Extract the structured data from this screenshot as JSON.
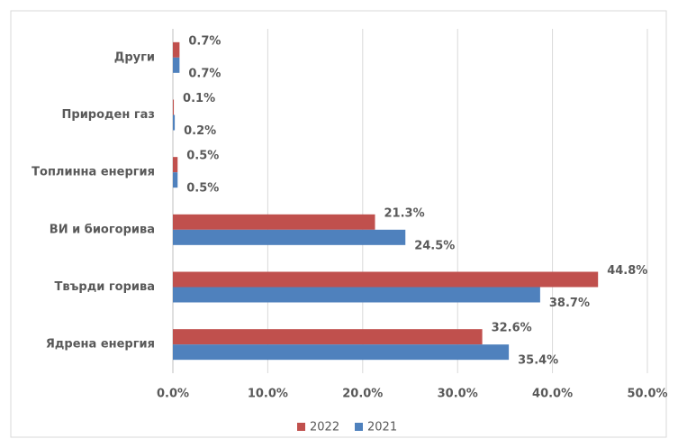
{
  "chart_data": {
    "type": "bar",
    "orientation": "horizontal",
    "categories": [
      "Други",
      "Природен газ",
      "Топлинна енергия",
      "ВИ и биогорива",
      "Твърди горива",
      "Ядрена енергия"
    ],
    "series": [
      {
        "name": "2022",
        "color": "#c0504d",
        "values": [
          0.7,
          0.1,
          0.5,
          21.3,
          44.8,
          32.6
        ],
        "value_labels": [
          "0.7%",
          "0.1%",
          "0.5%",
          "21.3%",
          "44.8%",
          "32.6%"
        ]
      },
      {
        "name": "2021",
        "color": "#4f81bd",
        "values": [
          0.7,
          0.2,
          0.5,
          24.5,
          38.7,
          35.4
        ],
        "value_labels": [
          "0.7%",
          "0.2%",
          "0.5%",
          "24.5%",
          "38.7%",
          "35.4%"
        ]
      }
    ],
    "xlim": [
      0,
      50
    ],
    "xticks": [
      {
        "value": 0,
        "label": "0.0%"
      },
      {
        "value": 10,
        "label": "10.0%"
      },
      {
        "value": 20,
        "label": "20.0%"
      },
      {
        "value": 30,
        "label": "30.0%"
      },
      {
        "value": 40,
        "label": "40.0%"
      },
      {
        "value": 50,
        "label": "50.0%"
      }
    ],
    "grid": true,
    "legend": "bottom"
  }
}
